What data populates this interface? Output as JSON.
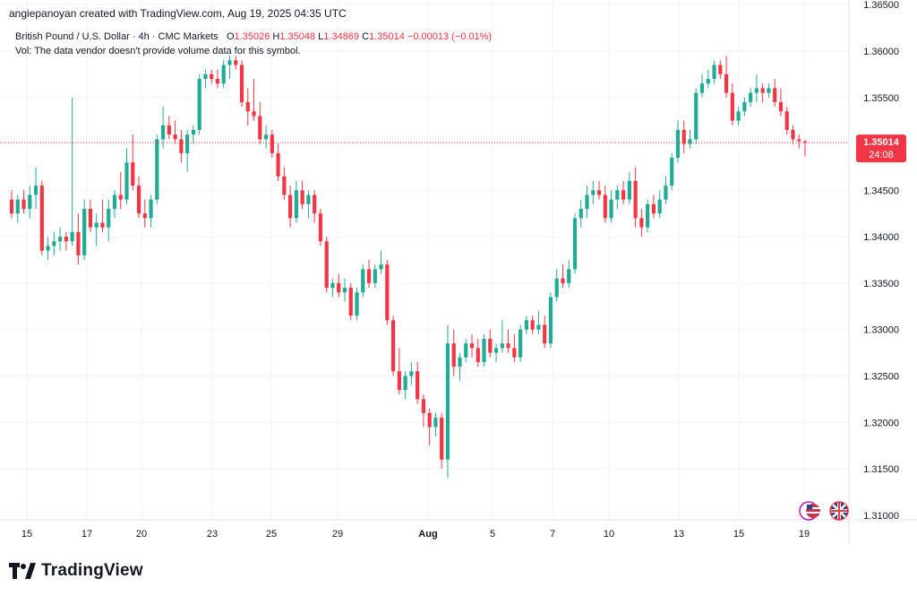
{
  "header": {
    "attribution": "angiepanoyan created with TradingView.com, Aug 19, 2025 04:35 UTC"
  },
  "legend": {
    "symbol": "British Pound / U.S. Dollar · 4h · CMC Markets",
    "o_label": "O",
    "o": "1.35026",
    "h_label": "H",
    "h": "1.35048",
    "l_label": "L",
    "l": "1.34869",
    "c_label": "C",
    "c": "1.35014",
    "change": "−0.00013 (−0.01%)",
    "volume_note": "Vol: The data vendor doesn't provide volume data for this symbol."
  },
  "price_badge": {
    "price": "1.35014",
    "countdown": "24:08",
    "color": "#f23645"
  },
  "brand": {
    "name": "TradingView"
  },
  "colors": {
    "up": "#22ab94",
    "down": "#f23645",
    "grid": "#f0f3fa",
    "axis_text": "#131722"
  },
  "chart_data": {
    "type": "candlestick",
    "title": "British Pound / U.S. Dollar · 4h · CMC Markets",
    "x_tick_labels": [
      "15",
      "17",
      "20",
      "23",
      "25",
      "29",
      "Aug",
      "5",
      "7",
      "10",
      "13",
      "15",
      "19"
    ],
    "y_tick_labels": [
      "1.31000",
      "1.31500",
      "1.32000",
      "1.32500",
      "1.33000",
      "1.33500",
      "1.34000",
      "1.34500",
      "1.35000",
      "1.35500",
      "1.36000",
      "1.36500"
    ],
    "ylim": [
      1.3095,
      1.3655
    ],
    "grid": true,
    "last_price": 1.35014,
    "candles": [
      [
        1.344,
        1.345,
        1.342,
        1.3425
      ],
      [
        1.3425,
        1.3445,
        1.3415,
        1.344
      ],
      [
        1.344,
        1.345,
        1.3425,
        1.343
      ],
      [
        1.343,
        1.3455,
        1.342,
        1.3445
      ],
      [
        1.3445,
        1.3475,
        1.343,
        1.3455
      ],
      [
        1.3455,
        1.346,
        1.338,
        1.3385
      ],
      [
        1.3385,
        1.34,
        1.3375,
        1.339
      ],
      [
        1.339,
        1.3405,
        1.338,
        1.3395
      ],
      [
        1.3395,
        1.341,
        1.3385,
        1.34
      ],
      [
        1.34,
        1.3405,
        1.3385,
        1.3395
      ],
      [
        1.3395,
        1.355,
        1.339,
        1.3405
      ],
      [
        1.3405,
        1.3425,
        1.337,
        1.338
      ],
      [
        1.338,
        1.344,
        1.3375,
        1.343
      ],
      [
        1.343,
        1.344,
        1.3405,
        1.341
      ],
      [
        1.341,
        1.3425,
        1.339,
        1.3415
      ],
      [
        1.3415,
        1.344,
        1.3405,
        1.341
      ],
      [
        1.341,
        1.344,
        1.3395,
        1.343
      ],
      [
        1.343,
        1.345,
        1.342,
        1.3445
      ],
      [
        1.3445,
        1.347,
        1.343,
        1.344
      ],
      [
        1.344,
        1.3495,
        1.3435,
        1.348
      ],
      [
        1.348,
        1.351,
        1.345,
        1.3455
      ],
      [
        1.3455,
        1.3465,
        1.342,
        1.3425
      ],
      [
        1.3425,
        1.344,
        1.341,
        1.342
      ],
      [
        1.342,
        1.3445,
        1.341,
        1.344
      ],
      [
        1.344,
        1.351,
        1.3435,
        1.3505
      ],
      [
        1.3505,
        1.354,
        1.3495,
        1.352
      ],
      [
        1.352,
        1.353,
        1.3505,
        1.351
      ],
      [
        1.351,
        1.3525,
        1.35,
        1.3505
      ],
      [
        1.3505,
        1.3515,
        1.348,
        1.349
      ],
      [
        1.349,
        1.3515,
        1.347,
        1.351
      ],
      [
        1.351,
        1.352,
        1.35,
        1.3515
      ],
      [
        1.3515,
        1.3575,
        1.351,
        1.357
      ],
      [
        1.357,
        1.358,
        1.356,
        1.3575
      ],
      [
        1.3575,
        1.358,
        1.3565,
        1.357
      ],
      [
        1.357,
        1.358,
        1.356,
        1.3565
      ],
      [
        1.3565,
        1.359,
        1.356,
        1.3585
      ],
      [
        1.3585,
        1.3595,
        1.357,
        1.359
      ],
      [
        1.359,
        1.3595,
        1.358,
        1.3585
      ],
      [
        1.3585,
        1.359,
        1.354,
        1.3545
      ],
      [
        1.3545,
        1.356,
        1.352,
        1.3535
      ],
      [
        1.3535,
        1.357,
        1.3525,
        1.353
      ],
      [
        1.353,
        1.3545,
        1.35,
        1.3505
      ],
      [
        1.3505,
        1.352,
        1.3495,
        1.351
      ],
      [
        1.351,
        1.3515,
        1.3485,
        1.349
      ],
      [
        1.349,
        1.35,
        1.346,
        1.3465
      ],
      [
        1.3465,
        1.3475,
        1.344,
        1.3445
      ],
      [
        1.3445,
        1.3455,
        1.341,
        1.342
      ],
      [
        1.342,
        1.346,
        1.3415,
        1.345
      ],
      [
        1.345,
        1.346,
        1.343,
        1.3435
      ],
      [
        1.3435,
        1.345,
        1.342,
        1.3445
      ],
      [
        1.3445,
        1.345,
        1.3415,
        1.3425
      ],
      [
        1.3425,
        1.343,
        1.339,
        1.3395
      ],
      [
        1.3395,
        1.34,
        1.334,
        1.3345
      ],
      [
        1.3345,
        1.3355,
        1.3335,
        1.335
      ],
      [
        1.335,
        1.336,
        1.3335,
        1.334
      ],
      [
        1.334,
        1.3355,
        1.333,
        1.3345
      ],
      [
        1.3345,
        1.335,
        1.331,
        1.3315
      ],
      [
        1.3315,
        1.3345,
        1.331,
        1.334
      ],
      [
        1.334,
        1.337,
        1.3335,
        1.3365
      ],
      [
        1.3365,
        1.3375,
        1.3345,
        1.335
      ],
      [
        1.335,
        1.337,
        1.3345,
        1.3365
      ],
      [
        1.3365,
        1.3385,
        1.336,
        1.337
      ],
      [
        1.337,
        1.3375,
        1.3305,
        1.331
      ],
      [
        1.331,
        1.3315,
        1.325,
        1.3255
      ],
      [
        1.3255,
        1.328,
        1.323,
        1.3235
      ],
      [
        1.3235,
        1.3255,
        1.3225,
        1.325
      ],
      [
        1.325,
        1.3265,
        1.324,
        1.3255
      ],
      [
        1.3255,
        1.3265,
        1.322,
        1.3225
      ],
      [
        1.3225,
        1.323,
        1.3195,
        1.321
      ],
      [
        1.321,
        1.3215,
        1.3175,
        1.3195
      ],
      [
        1.3195,
        1.321,
        1.3185,
        1.3205
      ],
      [
        1.3205,
        1.321,
        1.315,
        1.316
      ],
      [
        1.316,
        1.3305,
        1.314,
        1.3285
      ],
      [
        1.3285,
        1.33,
        1.325,
        1.326
      ],
      [
        1.326,
        1.3275,
        1.3245,
        1.327
      ],
      [
        1.327,
        1.329,
        1.3265,
        1.3285
      ],
      [
        1.3285,
        1.3295,
        1.327,
        1.328
      ],
      [
        1.328,
        1.329,
        1.326,
        1.3265
      ],
      [
        1.3265,
        1.3295,
        1.326,
        1.329
      ],
      [
        1.329,
        1.33,
        1.327,
        1.3275
      ],
      [
        1.3275,
        1.3285,
        1.3265,
        1.328
      ],
      [
        1.328,
        1.331,
        1.3275,
        1.3285
      ],
      [
        1.3285,
        1.33,
        1.3275,
        1.328
      ],
      [
        1.328,
        1.3295,
        1.3265,
        1.327
      ],
      [
        1.327,
        1.3305,
        1.3265,
        1.33
      ],
      [
        1.33,
        1.3315,
        1.3295,
        1.331
      ],
      [
        1.331,
        1.3315,
        1.3295,
        1.33
      ],
      [
        1.33,
        1.332,
        1.3295,
        1.3305
      ],
      [
        1.3305,
        1.3315,
        1.328,
        1.3285
      ],
      [
        1.3285,
        1.334,
        1.328,
        1.3335
      ],
      [
        1.3335,
        1.3365,
        1.333,
        1.3355
      ],
      [
        1.3355,
        1.337,
        1.3345,
        1.335
      ],
      [
        1.335,
        1.3375,
        1.3345,
        1.3365
      ],
      [
        1.3365,
        1.3425,
        1.336,
        1.342
      ],
      [
        1.342,
        1.344,
        1.341,
        1.343
      ],
      [
        1.343,
        1.3455,
        1.342,
        1.3445
      ],
      [
        1.3445,
        1.346,
        1.3435,
        1.345
      ],
      [
        1.345,
        1.346,
        1.344,
        1.3445
      ],
      [
        1.3445,
        1.3455,
        1.3415,
        1.342
      ],
      [
        1.342,
        1.345,
        1.3415,
        1.344
      ],
      [
        1.344,
        1.3455,
        1.343,
        1.345
      ],
      [
        1.345,
        1.346,
        1.3435,
        1.344
      ],
      [
        1.344,
        1.347,
        1.3435,
        1.346
      ],
      [
        1.346,
        1.3475,
        1.341,
        1.342
      ],
      [
        1.342,
        1.343,
        1.34,
        1.341
      ],
      [
        1.341,
        1.344,
        1.3405,
        1.3435
      ],
      [
        1.3435,
        1.3445,
        1.342,
        1.3425
      ],
      [
        1.3425,
        1.345,
        1.342,
        1.344
      ],
      [
        1.344,
        1.3465,
        1.3435,
        1.3455
      ],
      [
        1.3455,
        1.349,
        1.345,
        1.3485
      ],
      [
        1.3485,
        1.3525,
        1.348,
        1.3515
      ],
      [
        1.3515,
        1.3525,
        1.349,
        1.35
      ],
      [
        1.35,
        1.3515,
        1.3495,
        1.3505
      ],
      [
        1.3505,
        1.356,
        1.35,
        1.3555
      ],
      [
        1.3555,
        1.3575,
        1.355,
        1.3565
      ],
      [
        1.3565,
        1.358,
        1.356,
        1.357
      ],
      [
        1.357,
        1.359,
        1.3565,
        1.3585
      ],
      [
        1.3585,
        1.359,
        1.357,
        1.3575
      ],
      [
        1.3575,
        1.3595,
        1.355,
        1.3555
      ],
      [
        1.3555,
        1.3565,
        1.352,
        1.3525
      ],
      [
        1.3525,
        1.354,
        1.352,
        1.3535
      ],
      [
        1.3535,
        1.355,
        1.353,
        1.3545
      ],
      [
        1.3545,
        1.356,
        1.354,
        1.3555
      ],
      [
        1.3555,
        1.3575,
        1.3545,
        1.356
      ],
      [
        1.356,
        1.3565,
        1.3545,
        1.3555
      ],
      [
        1.3555,
        1.3565,
        1.355,
        1.356
      ],
      [
        1.356,
        1.357,
        1.354,
        1.3545
      ],
      [
        1.3545,
        1.356,
        1.353,
        1.3535
      ],
      [
        1.3535,
        1.354,
        1.351,
        1.3515
      ],
      [
        1.3515,
        1.352,
        1.35,
        1.3505
      ],
      [
        1.3505,
        1.351,
        1.3495,
        1.3503
      ],
      [
        1.35026,
        1.35048,
        1.34869,
        1.35014
      ]
    ]
  }
}
